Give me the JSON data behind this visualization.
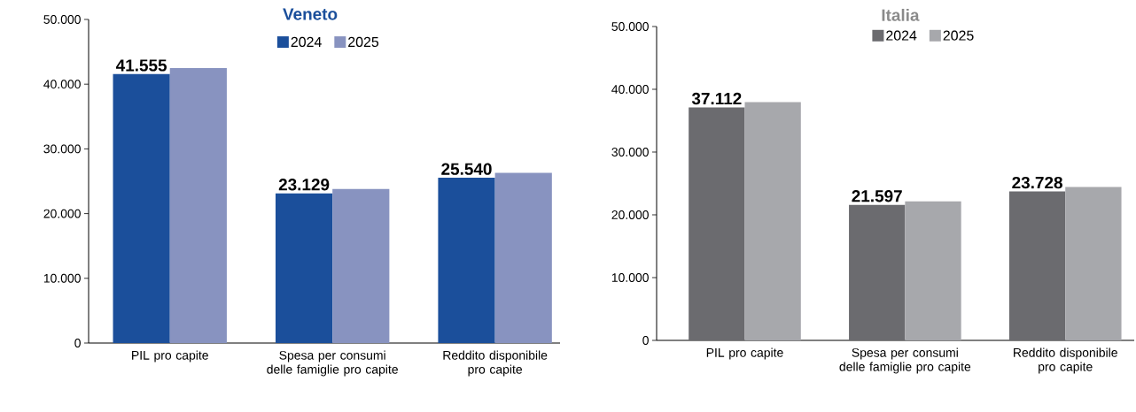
{
  "chart_data": [
    {
      "type": "bar",
      "title": "Veneto",
      "categories": [
        "PIL pro capite",
        "Spesa per consumi delle famiglie pro capite",
        "Reddito disponibile pro capite"
      ],
      "series": [
        {
          "name": "2024",
          "color": "#1b4f9b",
          "values": [
            41555,
            23129,
            25540
          ],
          "value_labels": [
            "41.555",
            "23.129",
            "25.540"
          ]
        },
        {
          "name": "2025",
          "color": "#8893c0",
          "values": [
            42500,
            23800,
            26300
          ]
        }
      ],
      "ylim": [
        0,
        50000
      ],
      "yticks": [
        {
          "value": 0,
          "label": "0"
        },
        {
          "value": 10000,
          "label": "10.000"
        },
        {
          "value": 20000,
          "label": "20.000"
        },
        {
          "value": 30000,
          "label": "30.000"
        },
        {
          "value": 40000,
          "label": "40.000"
        },
        {
          "value": 50000,
          "label": "50.000"
        }
      ],
      "legend": "top",
      "grid": false
    },
    {
      "type": "bar",
      "title": "Italia",
      "categories": [
        "PIL pro capite",
        "Spesa per consumi delle famiglie pro capite",
        "Reddito disponibile pro capite"
      ],
      "series": [
        {
          "name": "2024",
          "color": "#6b6b6f",
          "values": [
            37112,
            21597,
            23728
          ],
          "value_labels": [
            "37.112",
            "21.597",
            "23.728"
          ]
        },
        {
          "name": "2025",
          "color": "#a7a8ac",
          "values": [
            37950,
            22150,
            24430
          ]
        }
      ],
      "ylim": [
        0,
        50000
      ],
      "yticks": [
        {
          "value": 0,
          "label": "0"
        },
        {
          "value": 10000,
          "label": "10.000"
        },
        {
          "value": 20000,
          "label": "20.000"
        },
        {
          "value": 30000,
          "label": "30.000"
        },
        {
          "value": 40000,
          "label": "40.000"
        },
        {
          "value": 50000,
          "label": "50.000"
        }
      ],
      "legend": "top",
      "grid": false
    }
  ]
}
